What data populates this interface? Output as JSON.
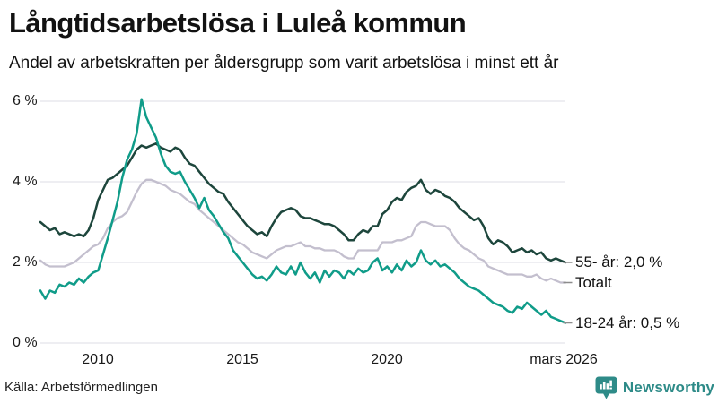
{
  "header": {
    "title": "Långtidsarbetslösa i Luleå kommun",
    "subtitle": "Andel av arbetskraften per åldersgrupp som varit arbetslösa i minst ett år"
  },
  "footer": {
    "source": "Källa: Arbetsförmedlingen",
    "brand": "Newsworthy"
  },
  "colors": {
    "age55": "#1d463c",
    "total": "#c3bfce",
    "age1824": "#109c89",
    "grid": "#e4e3e9",
    "connector": "#8c8c8c",
    "text": "#1a1a1a",
    "brand_teal": "#2e8b88"
  },
  "chart_data": {
    "type": "line",
    "unit": "%",
    "x_start": 2008.0,
    "x_end": 2026.25,
    "x_step_months": 2,
    "ylim": [
      0,
      6.3
    ],
    "grid": true,
    "legend_position": "right-end",
    "yticks": [
      {
        "label": "6 %",
        "value": 6
      },
      {
        "label": "4 %",
        "value": 4
      },
      {
        "label": "2 %",
        "value": 2
      },
      {
        "label": "0 %",
        "value": 0
      }
    ],
    "xticks": [
      {
        "label": "2010",
        "t": 2010.0
      },
      {
        "label": "2015",
        "t": 2015.0
      },
      {
        "label": "2020",
        "t": 2020.0
      },
      {
        "label": "mars 2026",
        "t": 2026.1667
      }
    ],
    "series": [
      {
        "id": "age55",
        "name": "55- år",
        "end_label": "55- år: 2,0 %",
        "end_value": 2.0,
        "color": "#1d463c",
        "stroke_width": 2.5,
        "values": [
          3.0,
          2.9,
          2.8,
          2.85,
          2.7,
          2.75,
          2.7,
          2.65,
          2.7,
          2.65,
          2.8,
          3.1,
          3.55,
          3.8,
          4.05,
          4.1,
          4.2,
          4.3,
          4.4,
          4.6,
          4.8,
          4.9,
          4.85,
          4.9,
          4.95,
          4.85,
          4.8,
          4.75,
          4.85,
          4.8,
          4.6,
          4.45,
          4.4,
          4.25,
          4.1,
          3.95,
          3.85,
          3.75,
          3.7,
          3.5,
          3.35,
          3.2,
          3.05,
          2.9,
          2.8,
          2.7,
          2.75,
          2.65,
          2.9,
          3.1,
          3.25,
          3.3,
          3.35,
          3.3,
          3.15,
          3.1,
          3.1,
          3.05,
          3.0,
          2.95,
          2.95,
          2.9,
          2.8,
          2.7,
          2.55,
          2.55,
          2.7,
          2.8,
          2.75,
          2.9,
          2.9,
          3.2,
          3.3,
          3.5,
          3.6,
          3.55,
          3.75,
          3.85,
          3.9,
          4.05,
          3.8,
          3.7,
          3.8,
          3.75,
          3.65,
          3.6,
          3.5,
          3.35,
          3.25,
          3.15,
          3.05,
          3.1,
          2.9,
          2.6,
          2.45,
          2.55,
          2.5,
          2.4,
          2.25,
          2.3,
          2.35,
          2.25,
          2.3,
          2.2,
          2.25,
          2.1,
          2.05,
          2.1,
          2.05,
          2.0
        ]
      },
      {
        "id": "total",
        "name": "Totalt",
        "end_label": "Totalt",
        "end_value": 1.5,
        "color": "#c3bfce",
        "stroke_width": 2.3,
        "values": [
          2.05,
          1.95,
          1.9,
          1.9,
          1.9,
          1.9,
          1.95,
          2.0,
          2.1,
          2.2,
          2.3,
          2.4,
          2.45,
          2.6,
          2.85,
          3.0,
          3.1,
          3.15,
          3.25,
          3.5,
          3.75,
          3.95,
          4.05,
          4.05,
          4.0,
          3.95,
          3.9,
          3.8,
          3.75,
          3.7,
          3.6,
          3.5,
          3.45,
          3.3,
          3.2,
          3.1,
          3.0,
          2.9,
          2.8,
          2.7,
          2.6,
          2.5,
          2.45,
          2.35,
          2.25,
          2.2,
          2.15,
          2.1,
          2.2,
          2.3,
          2.35,
          2.4,
          2.4,
          2.45,
          2.5,
          2.4,
          2.4,
          2.35,
          2.35,
          2.3,
          2.3,
          2.3,
          2.25,
          2.15,
          2.1,
          2.1,
          2.3,
          2.3,
          2.3,
          2.3,
          2.3,
          2.5,
          2.5,
          2.5,
          2.55,
          2.55,
          2.6,
          2.65,
          2.9,
          3.0,
          3.0,
          2.95,
          2.9,
          2.9,
          2.9,
          2.8,
          2.6,
          2.45,
          2.35,
          2.3,
          2.2,
          2.1,
          2.05,
          1.9,
          1.85,
          1.8,
          1.75,
          1.7,
          1.7,
          1.7,
          1.7,
          1.65,
          1.65,
          1.7,
          1.6,
          1.55,
          1.6,
          1.55,
          1.5,
          1.5
        ]
      },
      {
        "id": "age1824",
        "name": "18-24 år",
        "end_label": "18-24 år: 0,5 %",
        "end_value": 0.5,
        "color": "#109c89",
        "stroke_width": 2.5,
        "values": [
          1.3,
          1.1,
          1.3,
          1.25,
          1.45,
          1.4,
          1.5,
          1.45,
          1.6,
          1.5,
          1.65,
          1.75,
          1.8,
          2.2,
          2.6,
          3.05,
          3.5,
          4.1,
          4.55,
          4.8,
          5.2,
          6.05,
          5.6,
          5.35,
          5.1,
          4.7,
          4.4,
          4.25,
          4.2,
          4.25,
          4.0,
          3.8,
          3.6,
          3.35,
          3.6,
          3.3,
          3.15,
          2.95,
          2.75,
          2.6,
          2.3,
          2.15,
          2.0,
          1.85,
          1.7,
          1.6,
          1.65,
          1.55,
          1.7,
          1.9,
          1.75,
          1.7,
          1.9,
          1.7,
          2.0,
          1.75,
          1.6,
          1.75,
          1.5,
          1.8,
          1.65,
          1.8,
          1.75,
          1.6,
          1.8,
          1.7,
          1.85,
          1.75,
          1.8,
          2.0,
          2.1,
          1.8,
          1.9,
          1.75,
          1.95,
          1.8,
          2.05,
          1.9,
          2.0,
          2.3,
          2.05,
          1.95,
          2.05,
          1.9,
          1.95,
          1.85,
          1.75,
          1.6,
          1.5,
          1.4,
          1.35,
          1.3,
          1.2,
          1.1,
          1.0,
          0.95,
          0.9,
          0.8,
          0.75,
          0.9,
          0.85,
          1.0,
          0.9,
          0.8,
          0.7,
          0.8,
          0.65,
          0.6,
          0.55,
          0.5
        ]
      }
    ],
    "z_order": [
      "total",
      "age55",
      "age1824"
    ]
  }
}
